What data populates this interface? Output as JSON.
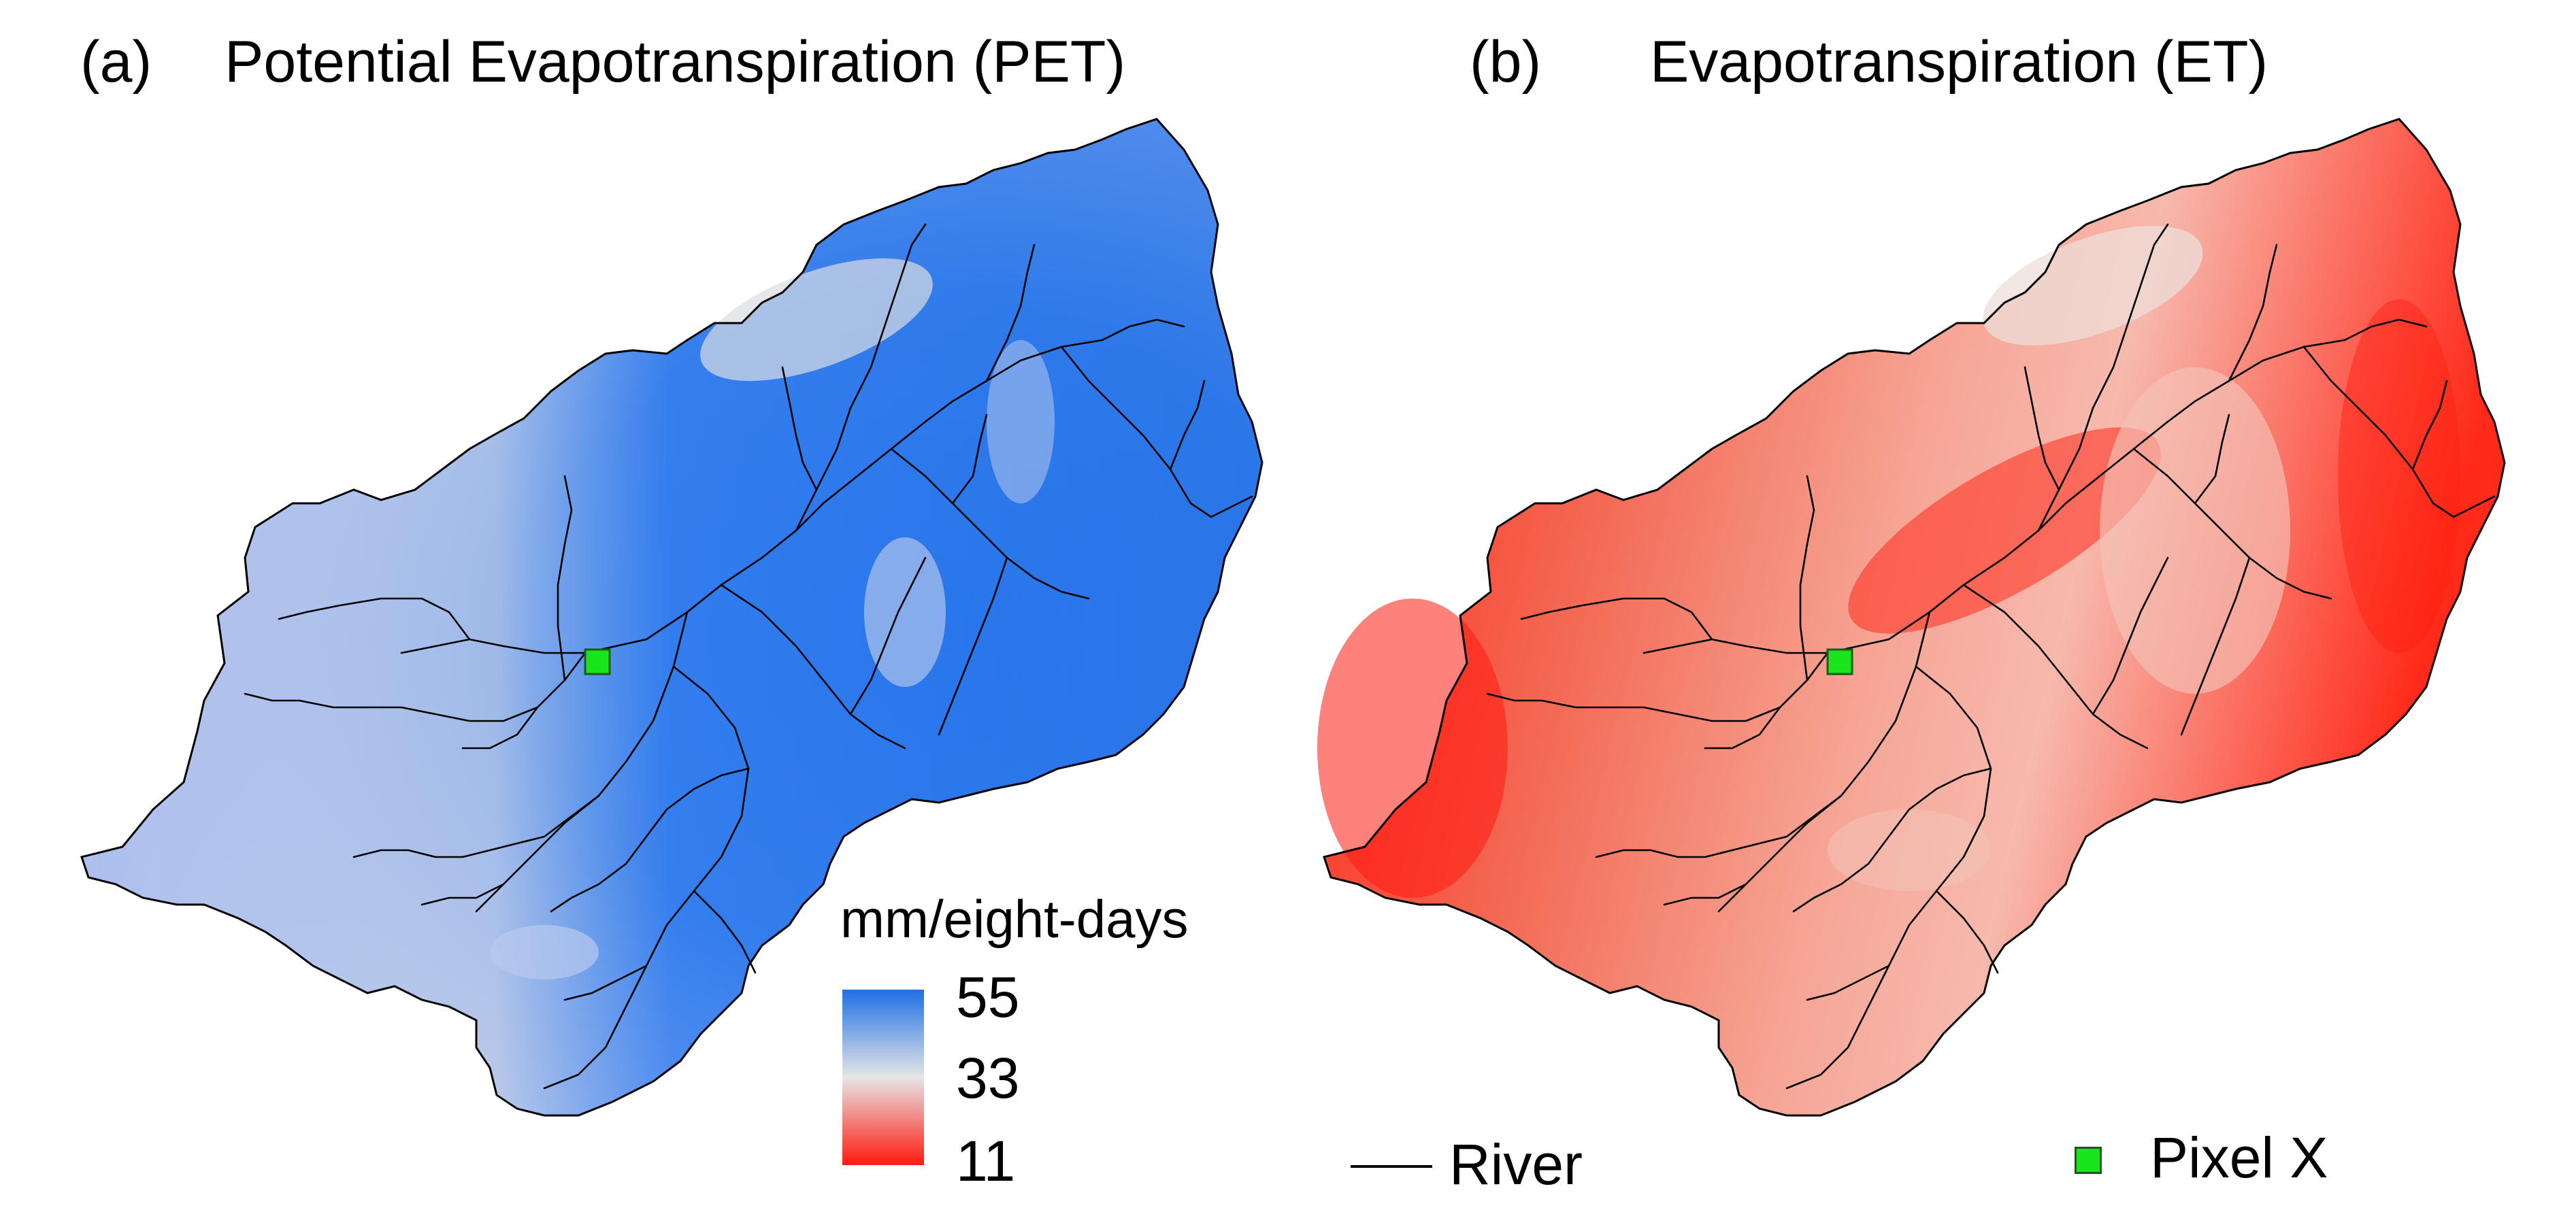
{
  "panels": [
    {
      "label": "(a)",
      "title": "Potential Evapotranspiration (PET)",
      "variable": "PET"
    },
    {
      "label": "(b)",
      "title": "Evapotranspiration (ET)",
      "variable": "ET"
    }
  ],
  "legend": {
    "unit": "mm/eight-days",
    "max": "55",
    "mid": "33",
    "min": "11",
    "colors": {
      "high": "#1f6fe6",
      "mid": "#e6e6e6",
      "low": "#ff1a10"
    }
  },
  "keys": {
    "river_label": "River",
    "pixel_label": "Pixel X",
    "pixel_color": "#19e619"
  }
}
